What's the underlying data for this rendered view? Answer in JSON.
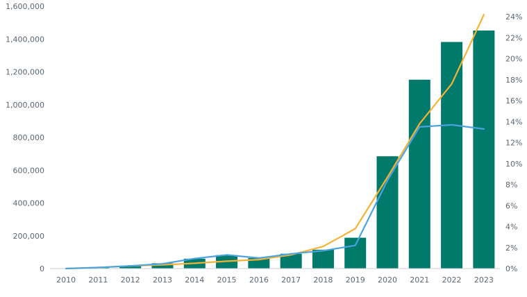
{
  "chart_data": {
    "type": "bar",
    "categories": [
      "2010",
      "2011",
      "2012",
      "2013",
      "2014",
      "2015",
      "2016",
      "2017",
      "2018",
      "2019",
      "2020",
      "2021",
      "2022",
      "2023"
    ],
    "series": [
      {
        "type": "bar",
        "axis": "left",
        "color": "#007a6a",
        "values": [
          2000,
          6000,
          15000,
          32000,
          60000,
          82000,
          64000,
          90000,
          115000,
          188000,
          685000,
          1152000,
          1382000,
          1452000
        ]
      },
      {
        "type": "line",
        "axis": "right",
        "color": "#f5b335",
        "values": [
          0.0,
          0.1,
          0.25,
          0.35,
          0.5,
          0.7,
          0.85,
          1.3,
          2.1,
          3.8,
          8.7,
          13.8,
          17.6,
          24.2
        ]
      },
      {
        "type": "line",
        "axis": "right",
        "color": "#4aa3e0",
        "values": [
          0.0,
          0.1,
          0.25,
          0.45,
          0.95,
          1.3,
          1.0,
          1.4,
          1.7,
          2.2,
          8.4,
          13.5,
          13.7,
          13.3
        ]
      }
    ],
    "y_left": {
      "min": 0,
      "max": 1600000,
      "ticks": [
        0,
        200000,
        400000,
        600000,
        800000,
        1000000,
        1200000,
        1400000,
        1600000
      ],
      "tick_labels": [
        "0",
        "200,000",
        "400,000",
        "600,000",
        "800,000",
        "1,000,000",
        "1,200,000",
        "1,400,000",
        "1,600,000"
      ]
    },
    "y_right": {
      "min": 0,
      "max": 25,
      "ticks": [
        0,
        2,
        4,
        6,
        8,
        10,
        12,
        14,
        16,
        18,
        20,
        22,
        24
      ],
      "tick_labels": [
        "0%",
        "2%",
        "4%",
        "6%",
        "8%",
        "10%",
        "12%",
        "14%",
        "16%",
        "18%",
        "20%",
        "22%",
        "24%"
      ]
    },
    "grid": false,
    "legend": "none",
    "title": "",
    "xlabel": "",
    "ylabel": ""
  }
}
